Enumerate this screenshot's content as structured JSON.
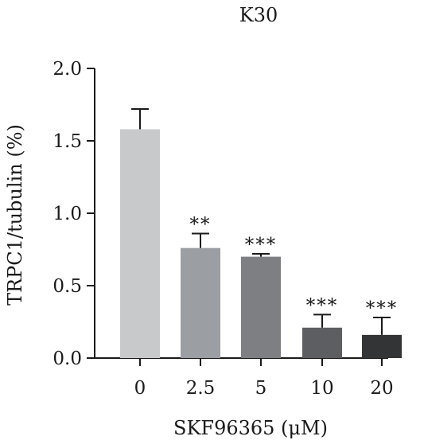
{
  "chart_data": {
    "type": "bar",
    "title": "K30",
    "xlabel": "SKF96365 (μM)",
    "ylabel": "TRPC1/tubulin (%)",
    "categories": [
      "0",
      "2.5",
      "5",
      "10",
      "20"
    ],
    "values": [
      1.58,
      0.76,
      0.7,
      0.21,
      0.16
    ],
    "errors": [
      0.14,
      0.1,
      0.02,
      0.09,
      0.12
    ],
    "significance": [
      "",
      "**",
      "***",
      "***",
      "***"
    ],
    "colors": [
      "#c8c9cb",
      "#9b9ea3",
      "#7d7f83",
      "#5d5e61",
      "#333436"
    ],
    "ylim": [
      0,
      2.0
    ],
    "yticks": [
      "0.0",
      "0.5",
      "1.0",
      "1.5",
      "2.0"
    ],
    "grid": false
  }
}
